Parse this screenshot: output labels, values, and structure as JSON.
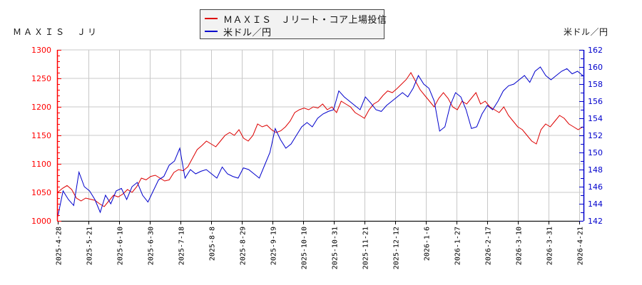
{
  "header": {
    "left_title": "ＭＡＸＩＳ　Ｊリ",
    "right_title": "米ドル／円"
  },
  "legend": {
    "items": [
      {
        "label": "ＭＡＸＩＳ　Ｊリート・コア上場投信",
        "color": "#dd0000"
      },
      {
        "label": "米ドル／円",
        "color": "#0000cc"
      }
    ]
  },
  "colors": {
    "left_axis": "#ff0000",
    "right_axis": "#0000cc",
    "grid": "#c8c8c8",
    "series_red": "#dd0000",
    "series_blue": "#0000cc"
  },
  "chart_data": {
    "type": "line",
    "title": "",
    "xlabel": "",
    "ylabel_left": "ＭＡＸＩＳ　Ｊリ",
    "ylabel_right": "米ドル／円",
    "ylim_left": [
      1000,
      1300
    ],
    "ylim_right": [
      142,
      162
    ],
    "yticks_left": [
      1000,
      1050,
      1100,
      1150,
      1200,
      1250,
      1300
    ],
    "yticks_right": [
      142,
      144,
      146,
      148,
      150,
      152,
      154,
      156,
      158,
      160,
      162
    ],
    "x_tick_labels": [
      "2025-4-28",
      "2025-5-21",
      "2025-6-10",
      "2025-6-30",
      "2025-7-18",
      "2025-8-8",
      "2025-8-29",
      "2025-9-19",
      "2025-10-10",
      "2025-10-31",
      "2025-11-21",
      "2025-12-12",
      "2026-1-6",
      "2026-1-27",
      "2026-2-17",
      "2026-3-10",
      "2026-3-31",
      "2026-4-21"
    ],
    "grid": true,
    "legend_position": "top-center",
    "series": [
      {
        "name": "ＭＡＸＩＳ　Ｊリート・コア上場投信",
        "axis": "left",
        "color": "#dd0000",
        "values": [
          1050,
          1057,
          1062,
          1055,
          1040,
          1035,
          1040,
          1038,
          1036,
          1030,
          1025,
          1035,
          1045,
          1042,
          1047,
          1055,
          1050,
          1060,
          1075,
          1072,
          1078,
          1080,
          1075,
          1070,
          1072,
          1085,
          1090,
          1088,
          1095,
          1110,
          1125,
          1132,
          1140,
          1135,
          1130,
          1140,
          1150,
          1155,
          1150,
          1160,
          1145,
          1140,
          1150,
          1170,
          1165,
          1168,
          1160,
          1155,
          1158,
          1165,
          1175,
          1190,
          1195,
          1198,
          1195,
          1200,
          1198,
          1205,
          1195,
          1200,
          1190,
          1210,
          1205,
          1200,
          1190,
          1185,
          1180,
          1195,
          1205,
          1210,
          1220,
          1228,
          1225,
          1232,
          1240,
          1248,
          1260,
          1245,
          1230,
          1220,
          1210,
          1200,
          1215,
          1225,
          1215,
          1200,
          1195,
          1210,
          1205,
          1215,
          1225,
          1205,
          1210,
          1200,
          1195,
          1190,
          1200,
          1185,
          1175,
          1165,
          1160,
          1150,
          1140,
          1135,
          1160,
          1170,
          1165,
          1175,
          1185,
          1180,
          1170,
          1165,
          1160,
          1165
        ]
      },
      {
        "name": "米ドル／円",
        "axis": "right",
        "color": "#0000cc",
        "values": [
          142.5,
          145.5,
          144.5,
          143.8,
          147.7,
          146.0,
          145.5,
          144.5,
          143.0,
          145.0,
          144.0,
          145.5,
          145.8,
          144.5,
          146.0,
          146.5,
          145.0,
          144.2,
          145.5,
          146.8,
          147.2,
          148.5,
          149.0,
          150.5,
          147.0,
          148.0,
          147.5,
          147.8,
          148.0,
          147.5,
          147.0,
          148.3,
          147.5,
          147.2,
          147.0,
          148.2,
          148.0,
          147.5,
          147.0,
          148.5,
          150.0,
          152.8,
          151.5,
          150.5,
          151.0,
          152.0,
          153.0,
          153.5,
          153.0,
          154.0,
          154.5,
          154.8,
          155.0,
          157.2,
          156.5,
          156.0,
          155.5,
          155.0,
          156.5,
          155.8,
          155.0,
          154.8,
          155.5,
          156.0,
          156.5,
          157.0,
          156.5,
          157.5,
          159.0,
          158.0,
          157.5,
          156.0,
          152.5,
          153.0,
          155.5,
          157.0,
          156.5,
          155.0,
          152.8,
          153.0,
          154.5,
          155.5,
          155.0,
          156.0,
          157.2,
          157.8,
          158.0,
          158.5,
          159.0,
          158.2,
          159.5,
          160.0,
          159.0,
          158.5,
          159.0,
          159.5,
          159.8,
          159.2,
          159.5,
          159.0
        ]
      }
    ]
  }
}
